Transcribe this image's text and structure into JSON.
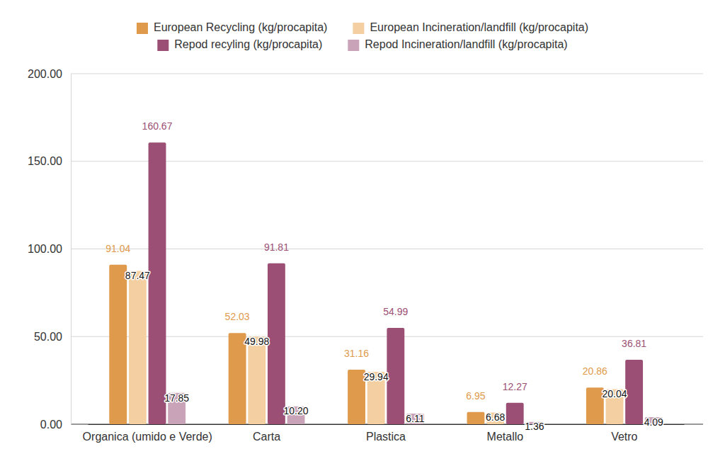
{
  "chart_data": {
    "type": "bar",
    "categories": [
      "Organica (umido e Verde)",
      "Carta",
      "Plastica",
      "Metallo",
      "Vetro"
    ],
    "series": [
      {
        "name": "European Recycling (kg/procapita)",
        "color": "#e09a4c",
        "values": [
          91.04,
          52.03,
          31.16,
          6.95,
          20.86
        ],
        "value_labels": [
          "91.04",
          "52.03",
          "31.16",
          "6.95",
          "20.86"
        ]
      },
      {
        "name": "European Incineration/landfill (kg/procapita)",
        "color": "#f4cfa1",
        "values": [
          87.47,
          49.98,
          29.94,
          6.68,
          20.04
        ],
        "value_labels": [
          "87.47",
          "49.98",
          "29.94",
          "6.68",
          "20.04"
        ]
      },
      {
        "name": "Repod recyling (kg/procapita)",
        "color": "#9b4f74",
        "values": [
          160.67,
          91.81,
          54.99,
          12.27,
          36.81
        ],
        "value_labels": [
          "160.67",
          "91.81",
          "54.99",
          "12.27",
          "36.81"
        ]
      },
      {
        "name": "Repod Incineration/landfill (kg/procapita)",
        "color": "#c9a4b8",
        "values": [
          17.85,
          10.2,
          6.11,
          1.36,
          4.09
        ],
        "value_labels": [
          "17.85",
          "10.20",
          "6.11",
          "1.36",
          "4.09"
        ]
      }
    ],
    "ylim": [
      0,
      200
    ],
    "yticks": [
      {
        "value": 0,
        "label": "0.00"
      },
      {
        "value": 50,
        "label": "50.00"
      },
      {
        "value": 100,
        "label": "100.00"
      },
      {
        "value": 150,
        "label": "150.00"
      },
      {
        "value": 200,
        "label": "200.00"
      }
    ],
    "grid": true,
    "legend": "top",
    "data_labels": true
  }
}
